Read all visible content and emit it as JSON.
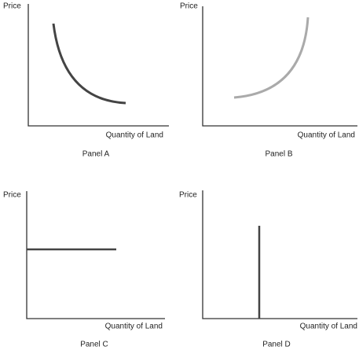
{
  "panels": [
    {
      "y_label": "Price",
      "x_label": "Quantity of Land",
      "caption": "Panel A"
    },
    {
      "y_label": "Price",
      "x_label": "Quantity of Land",
      "caption": "Panel B"
    },
    {
      "y_label": "Price",
      "x_label": "Quantity of Land",
      "caption": "Panel C"
    },
    {
      "y_label": "Price",
      "x_label": "Quantity of Land",
      "caption": "Panel D"
    }
  ]
}
